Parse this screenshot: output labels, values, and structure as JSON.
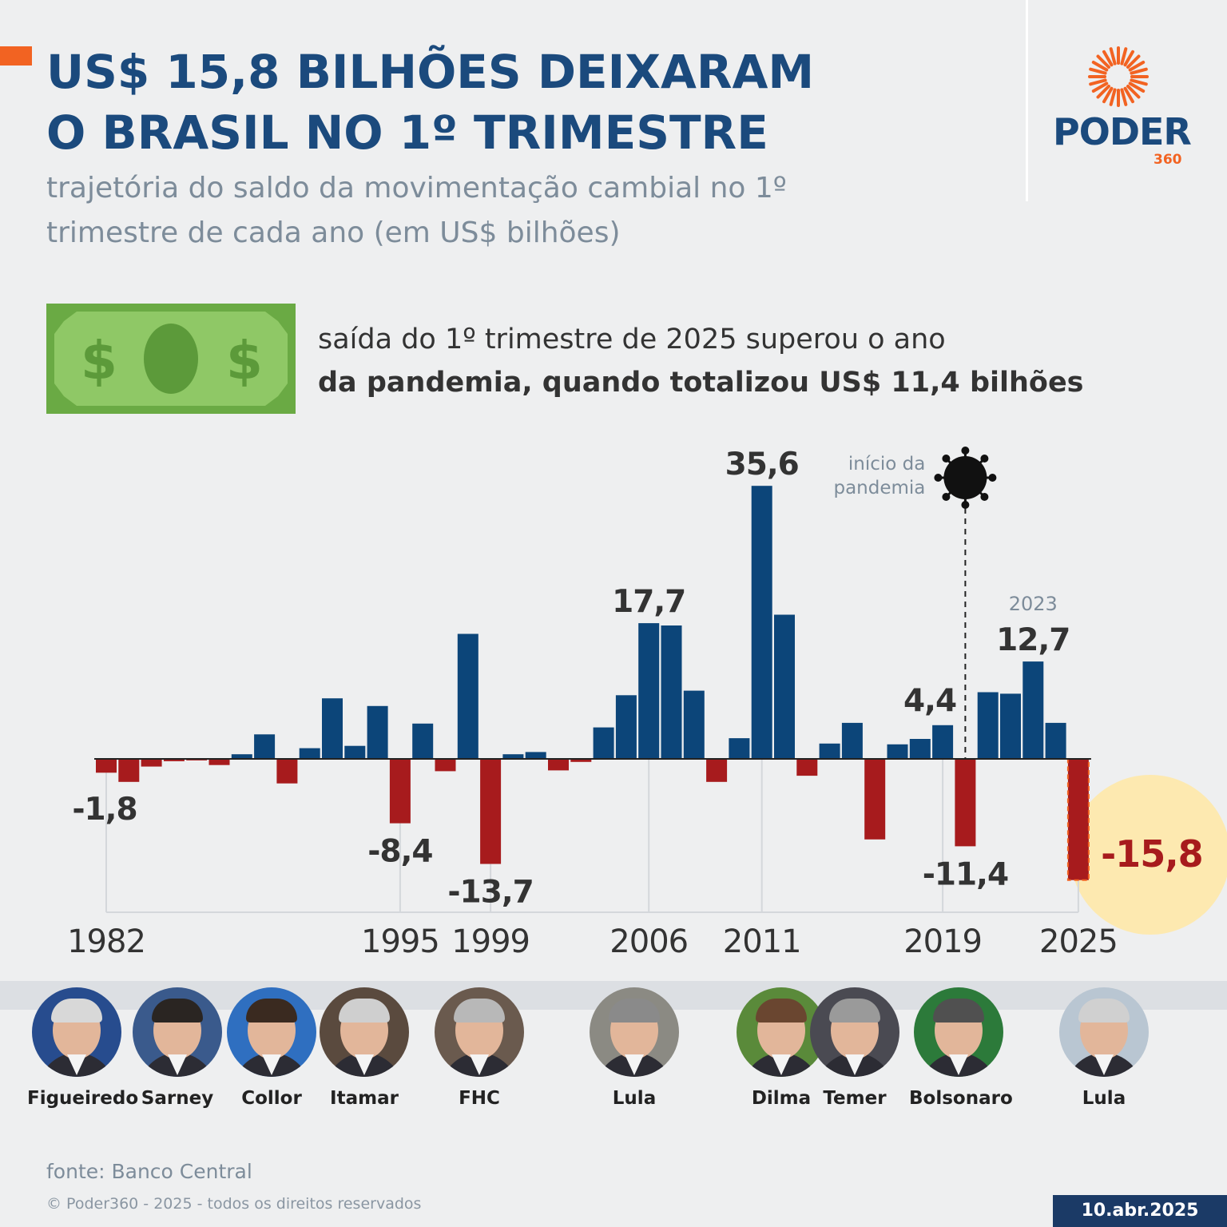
{
  "header": {
    "title_line1": "US$ 15,8 BILHÕES DEIXARAM",
    "title_line2": "O BRASIL NO 1º TRIMESTRE",
    "subtitle_line1": "trajetória do saldo da movimentação cambial no 1º",
    "subtitle_line2": "trimestre de cada ano (em US$ bilhões)"
  },
  "logo": {
    "word": "PODER",
    "number": "360"
  },
  "highlight": {
    "line1": "saída do 1º trimestre de 2025 superou o ano",
    "line2_bold": "da pandemia, quando totalizou US$ 11,4 bilhões"
  },
  "colors": {
    "positive": "#0c4579",
    "negative": "#a71b1d",
    "accent": "#f26322",
    "title": "#1b4a7d",
    "highlight_circle": "#fde9b0",
    "money_green": "#6aaa44"
  },
  "icons": {
    "money": "dollar-bill-icon",
    "virus": "virus-icon",
    "logo": "sunburst-logo-icon"
  },
  "chart_data": {
    "type": "bar",
    "title": "US$ 15,8 BILHÕES DEIXARAM O BRASIL NO 1º TRIMESTRE",
    "ylabel": "US$ bilhões",
    "x": [
      1982,
      1983,
      1984,
      1985,
      1986,
      1987,
      1988,
      1989,
      1990,
      1991,
      1992,
      1993,
      1994,
      1995,
      1996,
      1997,
      1998,
      1999,
      2000,
      2001,
      2002,
      2003,
      2004,
      2005,
      2006,
      2007,
      2008,
      2009,
      2010,
      2011,
      2012,
      2013,
      2014,
      2015,
      2016,
      2017,
      2018,
      2019,
      2020,
      2021,
      2022,
      2023,
      2024,
      2025
    ],
    "values": [
      -1.8,
      -3.0,
      -1.0,
      -0.3,
      -0.2,
      -0.8,
      0.6,
      3.2,
      -3.2,
      1.4,
      7.9,
      1.7,
      6.9,
      -8.4,
      4.6,
      -1.6,
      16.3,
      -13.7,
      0.6,
      0.9,
      -1.5,
      -0.4,
      4.1,
      8.3,
      17.7,
      17.4,
      8.9,
      -3.0,
      2.7,
      35.6,
      18.8,
      -2.2,
      2.0,
      4.7,
      -10.5,
      1.9,
      2.6,
      4.4,
      -11.4,
      8.7,
      8.5,
      12.7,
      4.7,
      -15.8
    ],
    "value_labels": [
      {
        "year": 1982,
        "text": "-1,8"
      },
      {
        "year": 1995,
        "text": "-8,4"
      },
      {
        "year": 1999,
        "text": "-13,7"
      },
      {
        "year": 2006,
        "text": "17,7"
      },
      {
        "year": 2011,
        "text": "35,6"
      },
      {
        "year": 2019,
        "text": "4,4"
      },
      {
        "year": 2020,
        "text": "-11,4"
      },
      {
        "year": 2023,
        "text": "12,7"
      },
      {
        "year": 2025,
        "text": "-15,8"
      }
    ],
    "value_label_2023_year": "2023",
    "axis_tick_labels": [
      "1982",
      "1995",
      "1999",
      "2006",
      "2011",
      "2019",
      "2025"
    ],
    "pandemic_note": {
      "year": 2020,
      "line1": "início da",
      "line2": "pandemia"
    },
    "ylim": [
      -20,
      40
    ],
    "grid": false
  },
  "presidents": [
    {
      "name": "Figueiredo",
      "start_year": 1982,
      "hair": "#d8d8d8",
      "bg": "#274c8e"
    },
    {
      "name": "Sarney",
      "start_year": 1985,
      "hair": "#2a2522",
      "bg": "#3a5a8c"
    },
    {
      "name": "Collor",
      "start_year": 1990,
      "hair": "#3a2a20",
      "bg": "#2f6fc0"
    },
    {
      "name": "Itamar",
      "start_year": 1992,
      "hair": "#cfcfcf",
      "bg": "#5a4a3e"
    },
    {
      "name": "FHC",
      "start_year": 1995,
      "hair": "#b8b8b8",
      "bg": "#6a5a4e"
    },
    {
      "name": "Lula",
      "start_year": 2003,
      "hair": "#8a8a8a",
      "bg": "#8b8a83"
    },
    {
      "name": "Dilma",
      "start_year": 2011,
      "hair": "#6a4630",
      "bg": "#5a8a3a"
    },
    {
      "name": "Temer",
      "start_year": 2016,
      "hair": "#9a9a9a",
      "bg": "#4a4a52"
    },
    {
      "name": "Bolsonaro",
      "start_year": 2019,
      "hair": "#505050",
      "bg": "#2c7a3a"
    },
    {
      "name": "Lula",
      "start_year": 2023,
      "hair": "#d0d0d0",
      "bg": "#b9c6d2"
    }
  ],
  "footer": {
    "source": "fonte: Banco Central",
    "copyright": "© Poder360 - 2025 - todos os direitos reservados",
    "date": "10.abr.2025"
  }
}
